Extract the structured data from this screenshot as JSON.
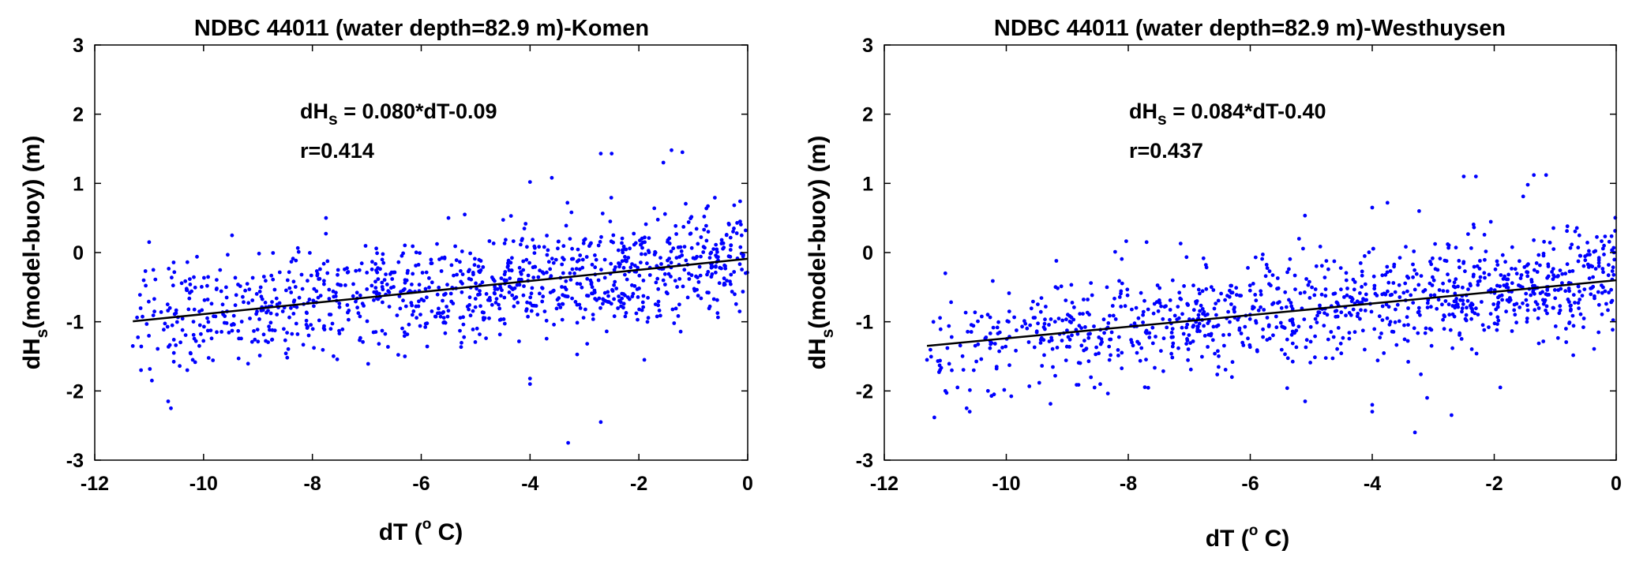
{
  "chart_data": [
    {
      "type": "scatter",
      "title": "NDBC 44011 (water depth=82.9 m)-Komen",
      "xlabel": {
        "prefix": "dT (",
        "sup": "o",
        "suffix": " C)"
      },
      "ylabel": {
        "prefix": "dH",
        "sub": "s",
        "suffix": "(model-buoy) (m)"
      },
      "xlim": [
        -12,
        0
      ],
      "ylim": [
        -3,
        3
      ],
      "xticks": [
        -12,
        -10,
        -8,
        -6,
        -4,
        -2,
        0
      ],
      "yticks": [
        -3,
        -2,
        -1,
        0,
        1,
        2,
        3
      ],
      "grid": false,
      "point_color": "#0000ff",
      "fit_color": "#000000",
      "annotation": {
        "prefix": "dH",
        "sub": "s",
        "equation": " = 0.080*dT-0.09",
        "r": "r=0.414"
      },
      "fit": {
        "slope": 0.08,
        "intercept": -0.09,
        "x_range": [
          -11.3,
          0
        ]
      },
      "seed": 44011,
      "n_points": 1050,
      "residual_sd": 0.38,
      "outliers": [
        {
          "x": -2.7,
          "y": 1.43
        },
        {
          "x": -2.5,
          "y": 1.43
        },
        {
          "x": -1.55,
          "y": 1.3
        },
        {
          "x": -1.4,
          "y": 1.48
        },
        {
          "x": -1.2,
          "y": 1.45
        },
        {
          "x": -3.6,
          "y": 1.08
        },
        {
          "x": -4.0,
          "y": 1.02
        },
        {
          "x": -3.3,
          "y": -2.75
        },
        {
          "x": -2.7,
          "y": -2.45
        },
        {
          "x": -10.6,
          "y": -2.25
        },
        {
          "x": -10.65,
          "y": -2.15
        },
        {
          "x": -4.0,
          "y": -1.9
        },
        {
          "x": -4.0,
          "y": -1.82
        },
        {
          "x": -11.3,
          "y": -1.35
        },
        {
          "x": -11.15,
          "y": -1.7
        },
        {
          "x": -10.95,
          "y": -1.85
        },
        {
          "x": -10.2,
          "y": -1.55
        },
        {
          "x": -10.3,
          "y": -1.7
        },
        {
          "x": -0.8,
          "y": 0.52
        },
        {
          "x": -0.2,
          "y": 0.28
        },
        {
          "x": -7.75,
          "y": 0.5
        },
        {
          "x": -5.2,
          "y": 0.55
        },
        {
          "x": -5.5,
          "y": 0.5
        },
        {
          "x": -11.0,
          "y": 0.15
        },
        {
          "x": -11.1,
          "y": -0.4
        },
        {
          "x": -1.9,
          "y": -1.55
        },
        {
          "x": -6.3,
          "y": -1.5
        }
      ]
    },
    {
      "type": "scatter",
      "title": "NDBC 44011 (water depth=82.9 m)-Westhuysen",
      "xlabel": {
        "prefix": "dT (",
        "sup": "o",
        "suffix": " C)"
      },
      "ylabel": {
        "prefix": "dH",
        "sub": "s",
        "suffix": "(model-buoy) (m)"
      },
      "xlim": [
        -12,
        0
      ],
      "ylim": [
        -3,
        3
      ],
      "xticks": [
        -12,
        -10,
        -8,
        -6,
        -4,
        -2,
        0
      ],
      "yticks": [
        -3,
        -2,
        -1,
        0,
        1,
        2,
        3
      ],
      "grid": false,
      "point_color": "#0000ff",
      "fit_color": "#000000",
      "annotation": {
        "prefix": "dH",
        "sub": "s",
        "equation": " = 0.084*dT-0.40",
        "r": "r=0.437"
      },
      "fit": {
        "slope": 0.084,
        "intercept": -0.4,
        "x_range": [
          -11.3,
          0
        ]
      },
      "seed": 82901,
      "n_points": 1050,
      "residual_sd": 0.38,
      "outliers": [
        {
          "x": -2.5,
          "y": 1.1
        },
        {
          "x": -2.3,
          "y": 1.1
        },
        {
          "x": -1.45,
          "y": 0.98
        },
        {
          "x": -1.35,
          "y": 1.12
        },
        {
          "x": -1.15,
          "y": 1.12
        },
        {
          "x": -3.75,
          "y": 0.72
        },
        {
          "x": -4.0,
          "y": 0.65
        },
        {
          "x": -3.3,
          "y": -2.6
        },
        {
          "x": -2.7,
          "y": -2.35
        },
        {
          "x": -10.6,
          "y": -2.3
        },
        {
          "x": -10.65,
          "y": -2.25
        },
        {
          "x": -4.0,
          "y": -2.3
        },
        {
          "x": -4.0,
          "y": -2.2
        },
        {
          "x": -11.3,
          "y": -1.55
        },
        {
          "x": -11.0,
          "y": -2.0
        },
        {
          "x": -10.8,
          "y": -1.95
        },
        {
          "x": -10.2,
          "y": -2.05
        },
        {
          "x": -10.3,
          "y": -2.0
        },
        {
          "x": -0.8,
          "y": 0.38
        },
        {
          "x": -0.2,
          "y": 0.1
        },
        {
          "x": -7.7,
          "y": 0.15
        },
        {
          "x": -5.2,
          "y": 0.2
        },
        {
          "x": -11.0,
          "y": -0.3
        },
        {
          "x": -1.9,
          "y": -1.95
        },
        {
          "x": -3.1,
          "y": -2.1
        },
        {
          "x": -5.1,
          "y": -2.15
        },
        {
          "x": -6.3,
          "y": -1.8
        }
      ]
    }
  ]
}
